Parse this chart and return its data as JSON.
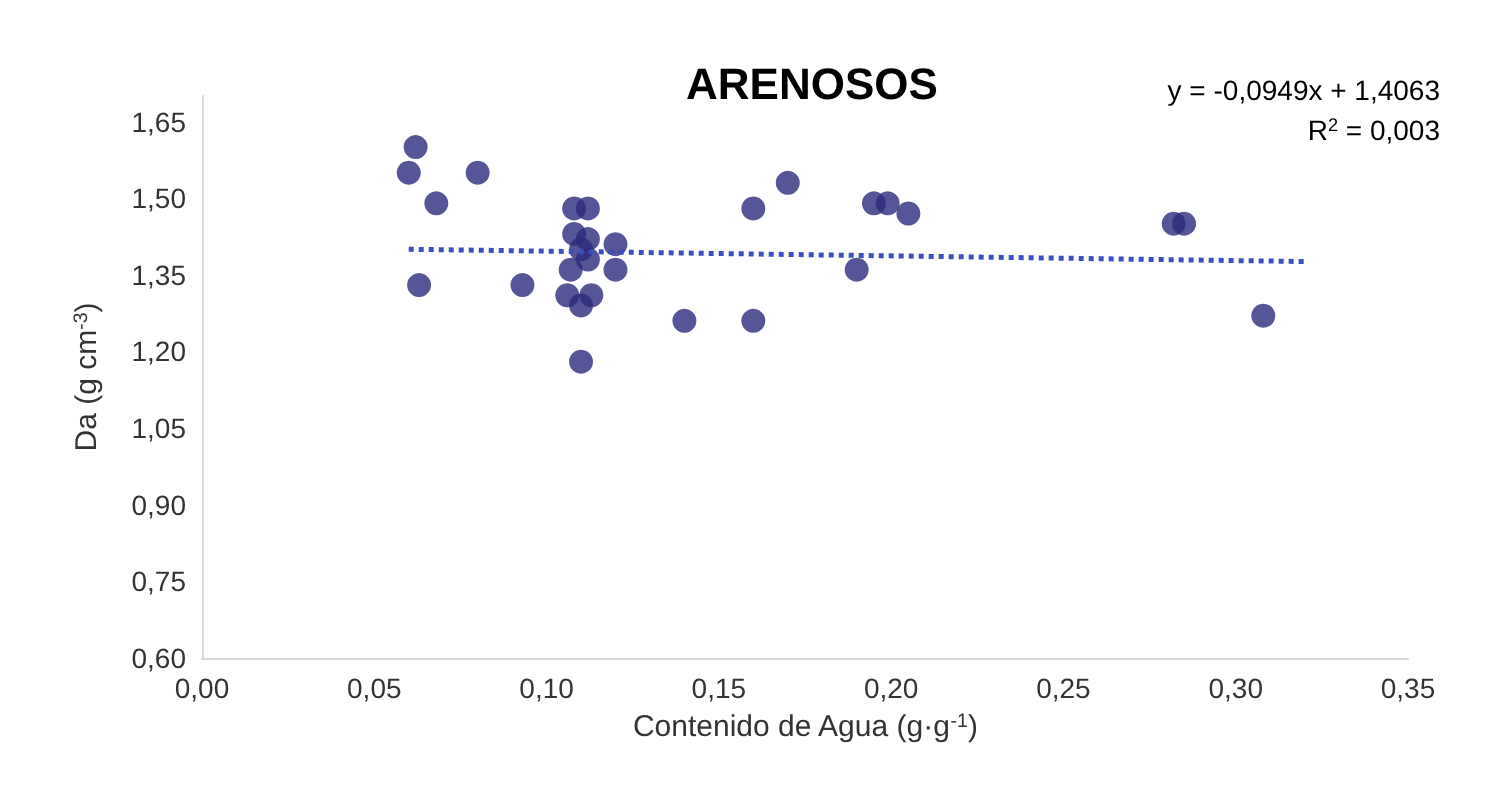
{
  "chart_data": {
    "type": "scatter",
    "title": "ARENOSOS",
    "xlabel": "Contenido de Agua (g·g$^{-1}$)",
    "ylabel": "Da (g cm$^{-3}$)",
    "xlim": [
      0,
      0.35
    ],
    "xticks": [
      {
        "value": 0,
        "label": "0,00"
      },
      {
        "value": 0.05,
        "label": "0,05"
      },
      {
        "value": 0.1,
        "label": "0,10"
      },
      {
        "value": 0.15,
        "label": "0,15"
      },
      {
        "value": 0.2,
        "label": "0,20"
      },
      {
        "value": 0.25,
        "label": "0,25"
      },
      {
        "value": 0.3,
        "label": "0,30"
      },
      {
        "value": 0.35,
        "label": "0,35"
      }
    ],
    "ylim": [
      0.6,
      1.7
    ],
    "yticks": [
      {
        "value": 0.6,
        "label": "0,60"
      },
      {
        "value": 0.75,
        "label": "0,75"
      },
      {
        "value": 0.9,
        "label": "0,90"
      },
      {
        "value": 1.05,
        "label": "1,05"
      },
      {
        "value": 1.2,
        "label": "1,20"
      },
      {
        "value": 1.35,
        "label": "1,35"
      },
      {
        "value": 1.5,
        "label": "1,50"
      },
      {
        "value": 1.65,
        "label": "1,65"
      }
    ],
    "grid": false,
    "marker": "circle",
    "series": [
      {
        "type": "scatter",
        "color": "#2b2a7d",
        "x": [
          0.062,
          0.06,
          0.068,
          0.08,
          0.063,
          0.093,
          0.108,
          0.112,
          0.108,
          0.112,
          0.11,
          0.112,
          0.107,
          0.106,
          0.113,
          0.11,
          0.11,
          0.12,
          0.12,
          0.14,
          0.16,
          0.16,
          0.17,
          0.195,
          0.199,
          0.205,
          0.19,
          0.282,
          0.285,
          0.308
        ],
        "values": [
          1.6,
          1.55,
          1.49,
          1.55,
          1.33,
          1.33,
          1.48,
          1.48,
          1.43,
          1.42,
          1.4,
          1.38,
          1.36,
          1.31,
          1.31,
          1.29,
          1.18,
          1.41,
          1.36,
          1.26,
          1.26,
          1.48,
          1.53,
          1.49,
          1.49,
          1.47,
          1.36,
          1.45,
          1.45,
          1.27
        ]
      },
      {
        "type": "line",
        "color": "#3a4fc0",
        "line_style": "dotted",
        "marker": "none",
        "x": [
          0.06,
          0.32
        ],
        "values": [
          1.4,
          1.376
        ]
      }
    ],
    "annotations": [
      "y = -0,0949x + 1,4063",
      "R$^{2}$ = 0,003"
    ]
  }
}
